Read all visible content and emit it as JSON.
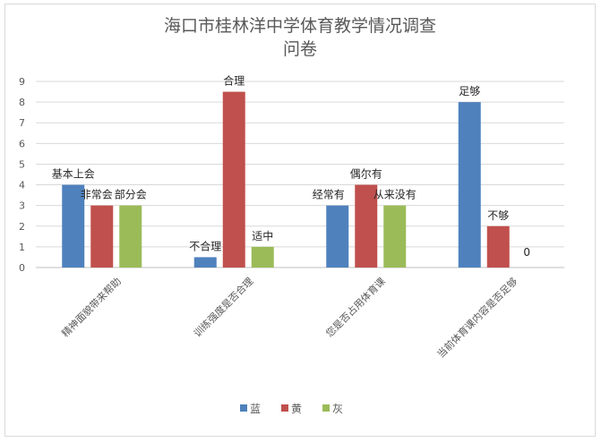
{
  "chart_data": {
    "type": "bar",
    "title_lines": [
      "海口市桂林洋中学体育教学情况调查",
      "问卷"
    ],
    "categories": [
      "精神面貌带来帮助",
      "训练强度是否合理",
      "您是否占用体育课",
      "当前体育课内容是否足够"
    ],
    "series": [
      {
        "name": "蓝",
        "color": "#4f81bd",
        "values": [
          4,
          0.5,
          3,
          8
        ],
        "labels": [
          "基本上会",
          "不合理",
          "经常有",
          "足够"
        ]
      },
      {
        "name": "黄",
        "color": "#c0504d",
        "values": [
          3,
          8.5,
          4,
          2
        ],
        "labels": [
          "非常会",
          "合理",
          "偶尔有",
          "不够"
        ]
      },
      {
        "name": "灰",
        "color": "#9bbb59",
        "values": [
          3,
          1,
          3,
          0
        ],
        "labels": [
          "部分会",
          "适中",
          "从来没有",
          "0"
        ]
      }
    ],
    "ylim": [
      0,
      9
    ],
    "yticks": [
      0,
      1,
      2,
      3,
      4,
      5,
      6,
      7,
      8,
      9
    ],
    "grid": true,
    "legend_position": "bottom"
  }
}
